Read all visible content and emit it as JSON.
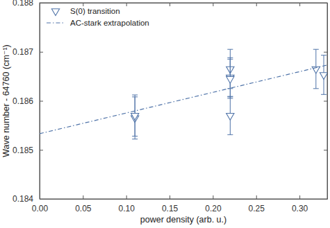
{
  "chart_data": {
    "type": "scatter",
    "x_label": "power density (arb. u.)",
    "y_label": "Wave number - 64760 (cm⁻¹)",
    "xlim": [
      0,
      0.332
    ],
    "ylim": [
      0.184,
      0.188
    ],
    "xticks": [
      {
        "value": 0,
        "label": "0.00"
      },
      {
        "value": 0.05,
        "label": "0.05"
      },
      {
        "value": 0.1,
        "label": "0.10"
      },
      {
        "value": 0.15,
        "label": "0.15"
      },
      {
        "value": 0.2,
        "label": "0.20"
      },
      {
        "value": 0.25,
        "label": "0.25"
      },
      {
        "value": 0.3,
        "label": "0.30"
      }
    ],
    "yticks": [
      0.184,
      0.185,
      0.186,
      0.187,
      0.188
    ],
    "legend": "upper left",
    "series": [
      {
        "name": "S(0) transition",
        "type": "scatter",
        "marker": "triangle-down",
        "color": "#4f73a8",
        "x": [
          0.11,
          0.11,
          0.22,
          0.22,
          0.22,
          0.22,
          0.319,
          0.328
        ],
        "values": [
          0.18565,
          0.1857,
          0.18665,
          0.18648,
          0.18645,
          0.1857,
          0.18665,
          0.18653
        ],
        "errors": [
          0.00043,
          0.00042,
          0.0004,
          0.0004,
          0.0004,
          0.00039,
          0.0004,
          0.0004
        ]
      },
      {
        "name": "AC-stark extrapolation",
        "type": "line",
        "line_style": "dashdot",
        "color": "#4f73a8",
        "x": [
          0,
          0.332
        ],
        "values": [
          0.18533,
          0.18673
        ]
      }
    ]
  }
}
